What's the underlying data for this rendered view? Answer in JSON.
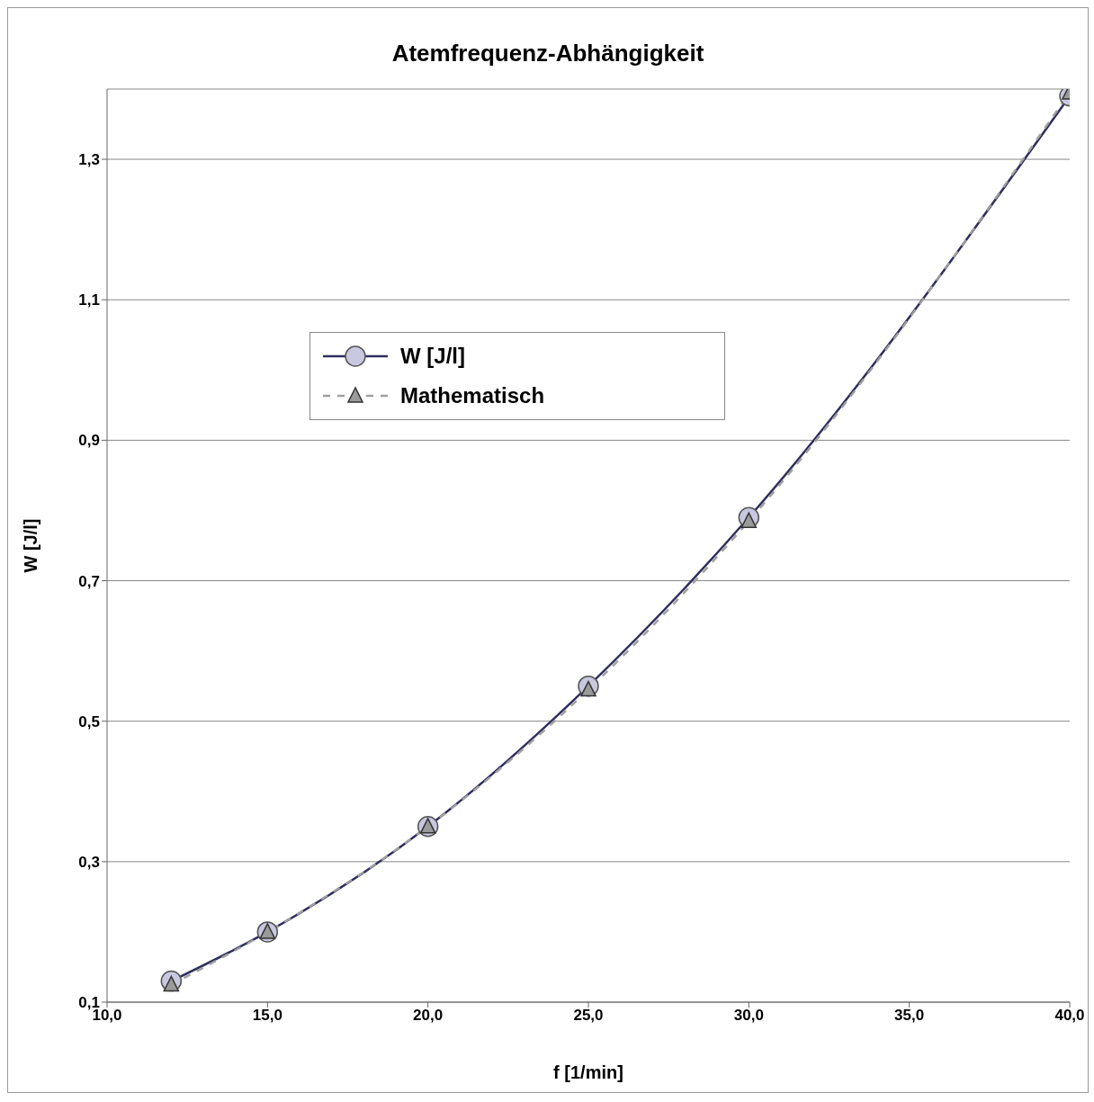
{
  "chart_data": {
    "type": "line",
    "title": "Atemfrequenz-Abhängigkeit",
    "xlabel": "f [1/min]",
    "ylabel": "W [J/l]",
    "x": [
      12,
      15,
      20,
      25,
      30,
      40
    ],
    "series": [
      {
        "name": "W [J/l]",
        "color": "#2f2f5f",
        "values": [
          0.13,
          0.2,
          0.35,
          0.55,
          0.79,
          1.39
        ],
        "marker": "circle",
        "line_style": "solid"
      },
      {
        "name": "Mathematisch",
        "color": "#a0a0a0",
        "values": [
          0.125,
          0.2,
          0.35,
          0.545,
          0.785,
          1.395
        ],
        "marker": "triangle",
        "line_style": "dashed"
      }
    ],
    "xlim": [
      10,
      40
    ],
    "xticks": [
      {
        "value": 10,
        "label": "10,0"
      },
      {
        "value": 15,
        "label": "15,0"
      },
      {
        "value": 20,
        "label": "20,0"
      },
      {
        "value": 25,
        "label": "25,0"
      },
      {
        "value": 30,
        "label": "30,0"
      },
      {
        "value": 35,
        "label": "35,0"
      },
      {
        "value": 40,
        "label": "40,0"
      }
    ],
    "ylim": [
      0.1,
      1.4
    ],
    "yticks": [
      {
        "value": 0.1,
        "label": "0,1"
      },
      {
        "value": 0.3,
        "label": "0,3"
      },
      {
        "value": 0.5,
        "label": "0,5"
      },
      {
        "value": 0.7,
        "label": "0,7"
      },
      {
        "value": 0.9,
        "label": "0,9"
      },
      {
        "value": 1.1,
        "label": "1,1"
      },
      {
        "value": 1.3,
        "label": "1,3"
      }
    ],
    "grid": "y",
    "legend": "top left"
  }
}
